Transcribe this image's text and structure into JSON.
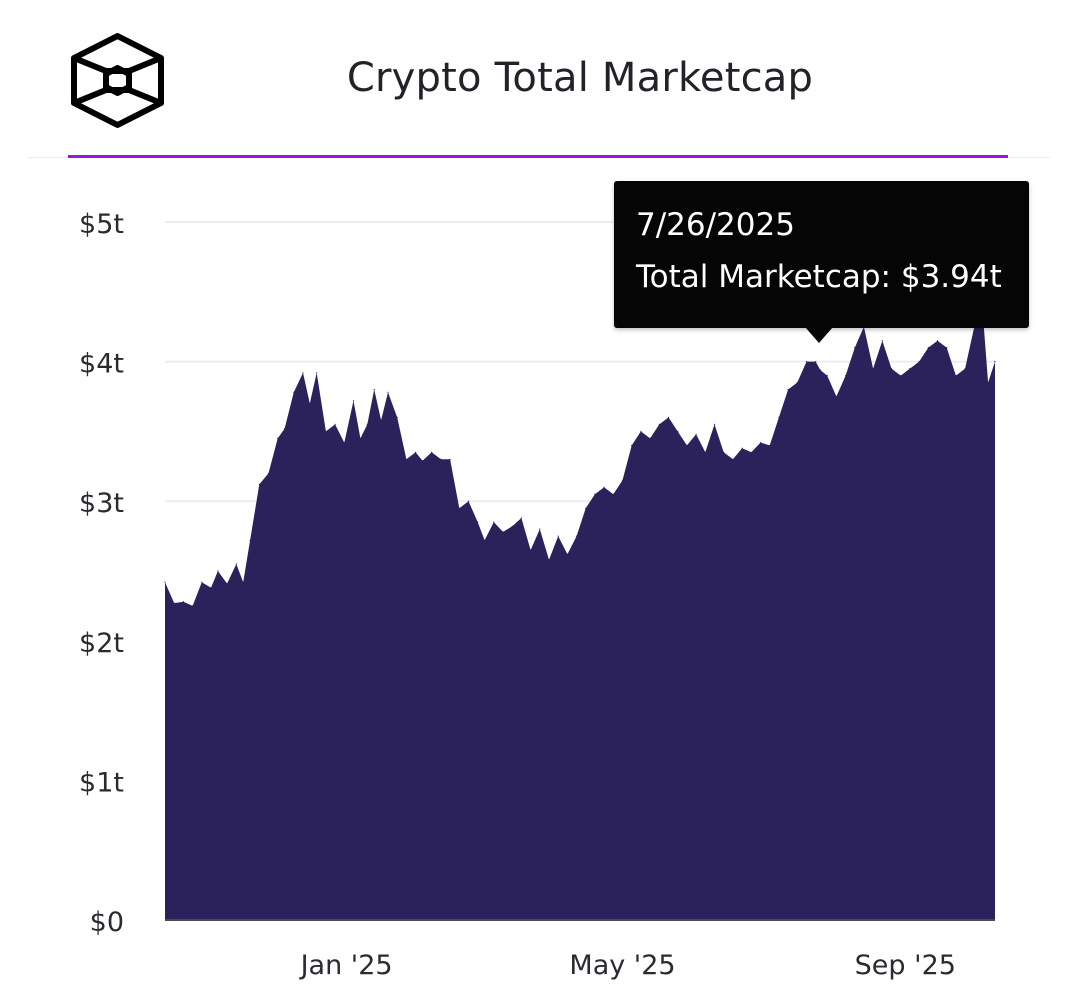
{
  "header": {
    "title": "Crypto Total Marketcap"
  },
  "logo": {
    "icon": "cube-logo-icon"
  },
  "colors": {
    "area": "#2b225c",
    "accent": "#9d16e0",
    "grid": "#ececf0",
    "tooltip_bg": "#050505"
  },
  "tooltip": {
    "date": "7/26/2025",
    "series_label": "Total Marketcap:",
    "value_text": "$3.94t"
  },
  "chart_data": {
    "type": "area",
    "title": "Crypto Total Marketcap",
    "xlabel": "",
    "ylabel": "",
    "ylim": [
      0,
      5
    ],
    "y_ticks": [
      {
        "value": 0,
        "label": "$0"
      },
      {
        "value": 1,
        "label": "$1t"
      },
      {
        "value": 2,
        "label": "$2t"
      },
      {
        "value": 3,
        "label": "$3t"
      },
      {
        "value": 4,
        "label": "$4t"
      },
      {
        "value": 5,
        "label": "$5t"
      }
    ],
    "x_ticks": [
      {
        "date": "2025-01-01",
        "label": "Jan '25"
      },
      {
        "date": "2025-05-01",
        "label": "May '25"
      },
      {
        "date": "2025-09-01",
        "label": "Sep '25"
      }
    ],
    "xlim": [
      "2024-10-14",
      "2025-10-10"
    ],
    "grid": true,
    "series": [
      {
        "values_unit": "trillion USD",
        "points": [
          [
            "2024-10-14",
            2.42
          ],
          [
            "2024-10-18",
            2.27
          ],
          [
            "2024-10-22",
            2.28
          ],
          [
            "2024-10-26",
            2.25
          ],
          [
            "2024-10-30",
            2.42
          ],
          [
            "2024-11-03",
            2.38
          ],
          [
            "2024-11-06",
            2.5
          ],
          [
            "2024-11-10",
            2.41
          ],
          [
            "2024-11-14",
            2.55
          ],
          [
            "2024-11-17",
            2.42
          ],
          [
            "2024-11-20",
            2.72
          ],
          [
            "2024-11-24",
            3.12
          ],
          [
            "2024-11-28",
            3.2
          ],
          [
            "2024-12-02",
            3.45
          ],
          [
            "2024-12-05",
            3.52
          ],
          [
            "2024-12-09",
            3.78
          ],
          [
            "2024-12-13",
            3.92
          ],
          [
            "2024-12-16",
            3.7
          ],
          [
            "2024-12-19",
            3.92
          ],
          [
            "2024-12-23",
            3.5
          ],
          [
            "2024-12-27",
            3.55
          ],
          [
            "2024-12-31",
            3.42
          ],
          [
            "2025-01-04",
            3.72
          ],
          [
            "2025-01-07",
            3.45
          ],
          [
            "2025-01-10",
            3.55
          ],
          [
            "2025-01-13",
            3.8
          ],
          [
            "2025-01-16",
            3.58
          ],
          [
            "2025-01-19",
            3.78
          ],
          [
            "2025-01-23",
            3.6
          ],
          [
            "2025-01-27",
            3.3
          ],
          [
            "2025-01-31",
            3.35
          ],
          [
            "2025-02-03",
            3.29
          ],
          [
            "2025-02-07",
            3.35
          ],
          [
            "2025-02-11",
            3.3
          ],
          [
            "2025-02-15",
            3.3
          ],
          [
            "2025-02-19",
            2.95
          ],
          [
            "2025-02-23",
            3.0
          ],
          [
            "2025-02-27",
            2.85
          ],
          [
            "2025-03-02",
            2.72
          ],
          [
            "2025-03-06",
            2.85
          ],
          [
            "2025-03-10",
            2.78
          ],
          [
            "2025-03-14",
            2.82
          ],
          [
            "2025-03-18",
            2.88
          ],
          [
            "2025-03-22",
            2.65
          ],
          [
            "2025-03-26",
            2.8
          ],
          [
            "2025-03-30",
            2.58
          ],
          [
            "2025-04-03",
            2.75
          ],
          [
            "2025-04-07",
            2.62
          ],
          [
            "2025-04-11",
            2.75
          ],
          [
            "2025-04-15",
            2.95
          ],
          [
            "2025-04-19",
            3.05
          ],
          [
            "2025-04-23",
            3.1
          ],
          [
            "2025-04-27",
            3.05
          ],
          [
            "2025-05-01",
            3.15
          ],
          [
            "2025-05-05",
            3.4
          ],
          [
            "2025-05-09",
            3.5
          ],
          [
            "2025-05-13",
            3.45
          ],
          [
            "2025-05-17",
            3.55
          ],
          [
            "2025-05-21",
            3.6
          ],
          [
            "2025-05-25",
            3.5
          ],
          [
            "2025-05-29",
            3.4
          ],
          [
            "2025-06-02",
            3.48
          ],
          [
            "2025-06-06",
            3.35
          ],
          [
            "2025-06-10",
            3.55
          ],
          [
            "2025-06-14",
            3.35
          ],
          [
            "2025-06-18",
            3.3
          ],
          [
            "2025-06-22",
            3.38
          ],
          [
            "2025-06-26",
            3.35
          ],
          [
            "2025-06-30",
            3.42
          ],
          [
            "2025-07-04",
            3.4
          ],
          [
            "2025-07-08",
            3.6
          ],
          [
            "2025-07-12",
            3.8
          ],
          [
            "2025-07-16",
            3.85
          ],
          [
            "2025-07-20",
            4.0
          ],
          [
            "2025-07-24",
            4.0
          ],
          [
            "2025-07-26",
            3.94
          ],
          [
            "2025-07-29",
            3.9
          ],
          [
            "2025-08-02",
            3.75
          ],
          [
            "2025-08-06",
            3.9
          ],
          [
            "2025-08-10",
            4.1
          ],
          [
            "2025-08-14",
            4.25
          ],
          [
            "2025-08-18",
            3.95
          ],
          [
            "2025-08-22",
            4.15
          ],
          [
            "2025-08-26",
            3.95
          ],
          [
            "2025-08-30",
            3.9
          ],
          [
            "2025-09-03",
            3.95
          ],
          [
            "2025-09-07",
            4.0
          ],
          [
            "2025-09-11",
            4.1
          ],
          [
            "2025-09-15",
            4.15
          ],
          [
            "2025-09-19",
            4.1
          ],
          [
            "2025-09-23",
            3.9
          ],
          [
            "2025-09-27",
            3.95
          ],
          [
            "2025-10-01",
            4.25
          ],
          [
            "2025-10-05",
            4.28
          ],
          [
            "2025-10-07",
            3.85
          ],
          [
            "2025-10-10",
            4.0
          ]
        ]
      }
    ]
  }
}
